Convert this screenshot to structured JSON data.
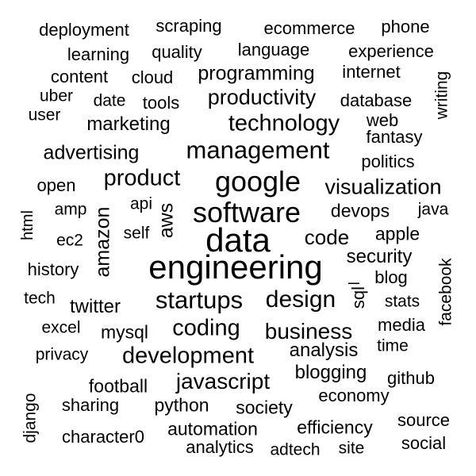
{
  "words": [
    {
      "text": "data",
      "weight": 42
    },
    {
      "text": "engineering",
      "weight": 42
    },
    {
      "text": "software",
      "weight": 36
    },
    {
      "text": "google",
      "weight": 36
    },
    {
      "text": "management",
      "weight": 31
    },
    {
      "text": "startups",
      "weight": 31
    },
    {
      "text": "technology",
      "weight": 29
    },
    {
      "text": "design",
      "weight": 30
    },
    {
      "text": "product",
      "weight": 29
    },
    {
      "text": "development",
      "weight": 29
    },
    {
      "text": "coding",
      "weight": 29
    },
    {
      "text": "business",
      "weight": 28
    },
    {
      "text": "javascript",
      "weight": 28
    },
    {
      "text": "visualization",
      "weight": 27
    },
    {
      "text": "amazon",
      "weight": 25
    },
    {
      "text": "aws",
      "weight": 25
    },
    {
      "text": "productivity",
      "weight": 27
    },
    {
      "text": "code",
      "weight": 26
    },
    {
      "text": "programming",
      "weight": 25
    },
    {
      "text": "advertising",
      "weight": 25
    },
    {
      "text": "marketing",
      "weight": 24
    },
    {
      "text": "analysis",
      "weight": 24
    },
    {
      "text": "security",
      "weight": 24
    },
    {
      "text": "twitter",
      "weight": 24
    },
    {
      "text": "blogging",
      "weight": 24
    },
    {
      "text": "devops",
      "weight": 23
    },
    {
      "text": "apple",
      "weight": 23
    },
    {
      "text": "mysql",
      "weight": 23
    },
    {
      "text": "python",
      "weight": 23
    },
    {
      "text": "automation",
      "weight": 23
    },
    {
      "text": "efficiency",
      "weight": 23
    },
    {
      "text": "society",
      "weight": 23
    },
    {
      "text": "football",
      "weight": 23
    },
    {
      "text": "media",
      "weight": 22
    },
    {
      "text": "language",
      "weight": 22
    },
    {
      "text": "quality",
      "weight": 22
    },
    {
      "text": "scraping",
      "weight": 22
    },
    {
      "text": "ecommerce",
      "weight": 22
    },
    {
      "text": "experience",
      "weight": 22
    },
    {
      "text": "deployment",
      "weight": 22
    },
    {
      "text": "learning",
      "weight": 22
    },
    {
      "text": "cloud",
      "weight": 22
    },
    {
      "text": "internet",
      "weight": 22
    },
    {
      "text": "database",
      "weight": 22
    },
    {
      "text": "content",
      "weight": 22
    },
    {
      "text": "tools",
      "weight": 22
    },
    {
      "text": "politics",
      "weight": 22
    },
    {
      "text": "fantasy",
      "weight": 22
    },
    {
      "text": "web",
      "weight": 22
    },
    {
      "text": "open",
      "weight": 22
    },
    {
      "text": "blog",
      "weight": 22
    },
    {
      "text": "history",
      "weight": 22
    },
    {
      "text": "economy",
      "weight": 22
    },
    {
      "text": "sharing",
      "weight": 22
    },
    {
      "text": "character0",
      "weight": 22
    },
    {
      "text": "analytics",
      "weight": 22
    },
    {
      "text": "source",
      "weight": 22
    },
    {
      "text": "social",
      "weight": 22
    },
    {
      "text": "github",
      "weight": 22
    },
    {
      "text": "phone",
      "weight": 22
    },
    {
      "text": "date",
      "weight": 21
    },
    {
      "text": "uber",
      "weight": 21
    },
    {
      "text": "user",
      "weight": 21
    },
    {
      "text": "api",
      "weight": 21
    },
    {
      "text": "amp",
      "weight": 21
    },
    {
      "text": "self",
      "weight": 21
    },
    {
      "text": "ec2",
      "weight": 21
    },
    {
      "text": "java",
      "weight": 21
    },
    {
      "text": "tech",
      "weight": 21
    },
    {
      "text": "excel",
      "weight": 21
    },
    {
      "text": "privacy",
      "weight": 21
    },
    {
      "text": "stats",
      "weight": 21
    },
    {
      "text": "time",
      "weight": 21
    },
    {
      "text": "site",
      "weight": 21
    },
    {
      "text": "adtech",
      "weight": 21
    },
    {
      "text": "writing",
      "weight": 21
    },
    {
      "text": "facebook",
      "weight": 21
    },
    {
      "text": "django",
      "weight": 21
    },
    {
      "text": "html",
      "weight": 20
    },
    {
      "text": "sql",
      "weight": 22
    },
    {
      "text": "_",
      "weight": 24
    }
  ]
}
